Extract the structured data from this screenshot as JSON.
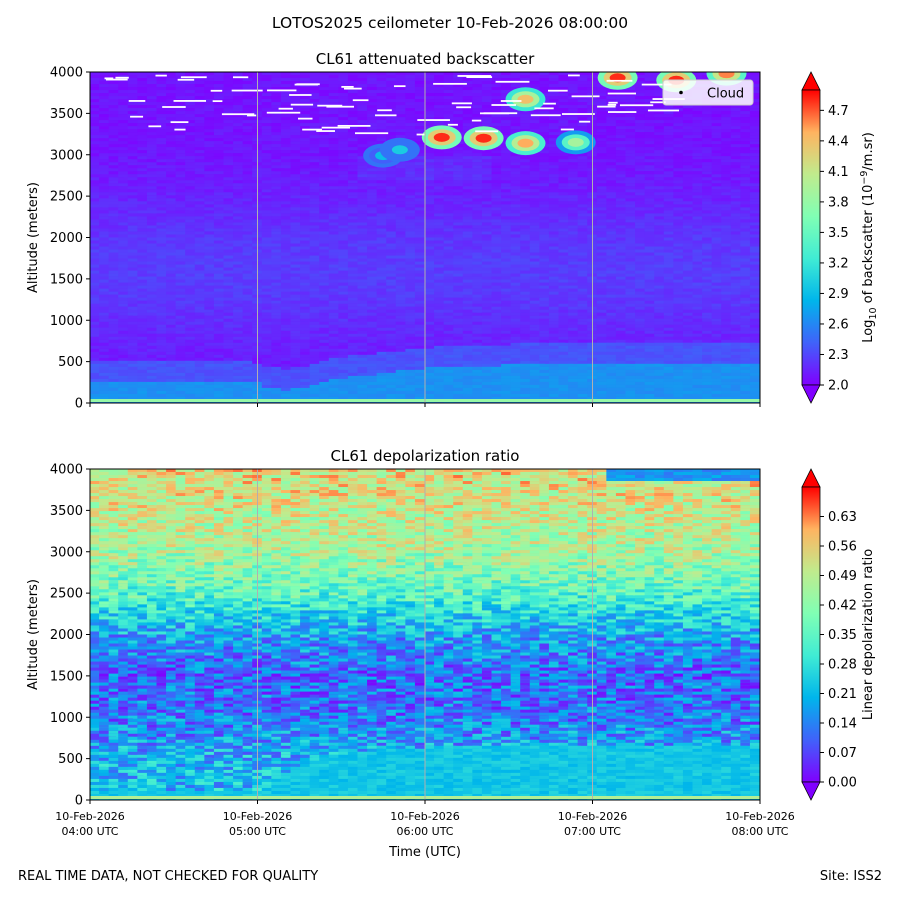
{
  "figure": {
    "title": "LOTOS2025 ceilometer 10-Feb-2026 08:00:00",
    "footer_left": "REAL TIME DATA, NOT CHECKED FOR QUALITY",
    "footer_right": "Site: ISS2",
    "colors": {
      "rainbow_stops": [
        "#8000ff",
        "#4062fa",
        "#00b5eb",
        "#40ecd4",
        "#80ffb4",
        "#c0eb8d",
        "#ffb360",
        "#ff0000"
      ],
      "cloud_marker": "#ffffff"
    }
  },
  "chart_data": [
    {
      "type": "heatmap",
      "id": "backscatter",
      "title": "CL61 attenuated backscatter",
      "xlabel": "",
      "ylabel": "Altitude (meters)",
      "ylim": [
        0,
        4000
      ],
      "yticks": [
        0,
        500,
        1000,
        1500,
        2000,
        2500,
        3000,
        3500,
        4000
      ],
      "xlim_hours": [
        4,
        8
      ],
      "xticks_hours": [
        4,
        5,
        6,
        7,
        8
      ],
      "xtick_labels": [],
      "grid": "vertical",
      "legend": {
        "label": "Cloud",
        "position": "top-right"
      },
      "colorbar": {
        "label_prefix": "Log",
        "label_sub": "10",
        "label_mid": " of backscatter (10",
        "label_sup": "−9",
        "label_suffix": "/m.sr)",
        "min": 2.0,
        "max": 4.9,
        "ticks": [
          "2.0",
          "2.3",
          "2.6",
          "2.9",
          "3.2",
          "3.5",
          "3.8",
          "4.1",
          "4.4",
          "4.7"
        ],
        "extend": "both"
      },
      "boundary_layer": {
        "hours": [
          4.0,
          4.5,
          5.0,
          5.1,
          5.2,
          5.5,
          6.0,
          6.5,
          7.0,
          7.5,
          8.0
        ],
        "top_m": [
          260,
          250,
          240,
          170,
          160,
          300,
          420,
          460,
          480,
          470,
          470
        ],
        "value": 2.65
      },
      "cloud_features": [
        {
          "hour": 5.75,
          "alt_m": 2990,
          "value": 2.9
        },
        {
          "hour": 5.85,
          "alt_m": 3060,
          "value": 3.0
        },
        {
          "hour": 6.1,
          "alt_m": 3210,
          "value": 4.8
        },
        {
          "hour": 6.35,
          "alt_m": 3200,
          "value": 4.8
        },
        {
          "hour": 6.6,
          "alt_m": 3140,
          "value": 4.5
        },
        {
          "hour": 6.9,
          "alt_m": 3150,
          "value": 3.9
        },
        {
          "hour": 6.6,
          "alt_m": 3670,
          "value": 4.4
        },
        {
          "hour": 7.15,
          "alt_m": 3930,
          "value": 4.8
        },
        {
          "hour": 7.5,
          "alt_m": 3900,
          "value": 4.8
        },
        {
          "hour": 7.8,
          "alt_m": 3980,
          "value": 4.6
        }
      ]
    },
    {
      "type": "heatmap",
      "id": "depolarization",
      "title": "CL61 depolarization ratio",
      "xlabel": "Time (UTC)",
      "ylabel": "Altitude (meters)",
      "ylim": [
        0,
        4000
      ],
      "yticks": [
        0,
        500,
        1000,
        1500,
        2000,
        2500,
        3000,
        3500,
        4000
      ],
      "xlim_hours": [
        4,
        8
      ],
      "xticks_hours": [
        4,
        5,
        6,
        7,
        8
      ],
      "xtick_labels": [
        {
          "date": "10-Feb-2026",
          "time": "04:00 UTC"
        },
        {
          "date": "10-Feb-2026",
          "time": "05:00 UTC"
        },
        {
          "date": "10-Feb-2026",
          "time": "06:00 UTC"
        },
        {
          "date": "10-Feb-2026",
          "time": "07:00 UTC"
        },
        {
          "date": "10-Feb-2026",
          "time": "08:00 UTC"
        }
      ],
      "grid": "vertical",
      "colorbar": {
        "label": "Linear depolarization ratio",
        "min": 0.0,
        "max": 0.7,
        "ticks": [
          "0.00",
          "0.07",
          "0.14",
          "0.21",
          "0.28",
          "0.35",
          "0.42",
          "0.49",
          "0.56",
          "0.63"
        ],
        "extend": "both"
      },
      "profile": {
        "alt_m": [
          0,
          500,
          1000,
          1500,
          2000,
          2500,
          3000,
          3500,
          4000
        ],
        "value": [
          0.22,
          0.2,
          0.13,
          0.11,
          0.18,
          0.35,
          0.46,
          0.5,
          0.54
        ]
      },
      "boundary_layer": {
        "hours": [
          4.0,
          4.5,
          5.0,
          5.1,
          5.2,
          5.5,
          6.0,
          6.5,
          7.0,
          7.5,
          8.0
        ],
        "top_m": [
          120,
          110,
          100,
          200,
          380,
          560,
          640,
          640,
          650,
          660,
          660
        ],
        "value": 0.23
      }
    }
  ]
}
